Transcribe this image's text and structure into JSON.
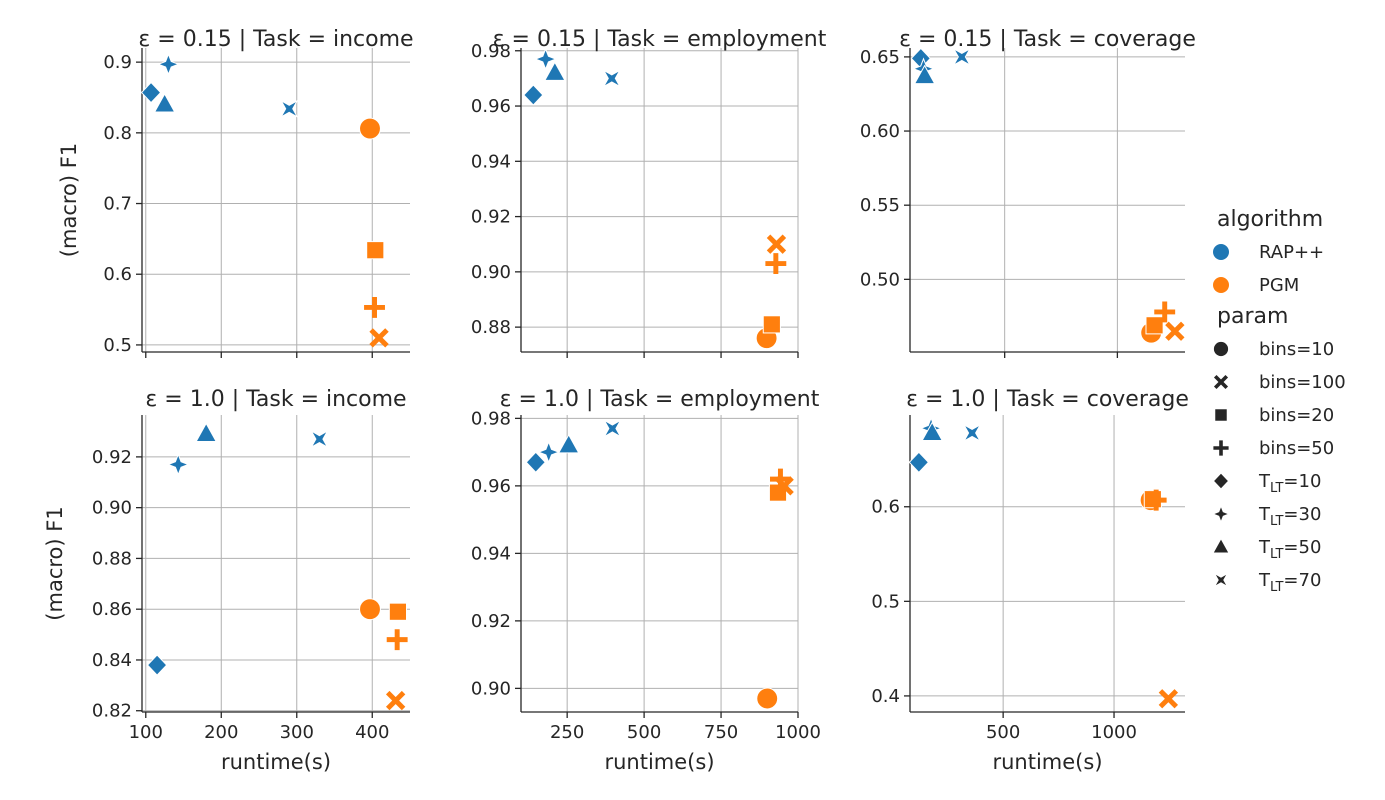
{
  "colors": {
    "RAP++": "#1f77b4",
    "PGM": "#ff7f0e",
    "grid": "#b0b0b0",
    "axis": "#262626",
    "legend_marker": "#262626"
  },
  "legend": {
    "algorithm_title": "algorithm",
    "algorithm_items": [
      "RAP++",
      "PGM"
    ],
    "param_title": "param",
    "param_items": [
      {
        "label": "bins=10",
        "marker": "circle"
      },
      {
        "label": "bins=100",
        "marker": "x"
      },
      {
        "label": "bins=20",
        "marker": "square"
      },
      {
        "label": "bins=50",
        "marker": "plus"
      },
      {
        "label": "T_LT=10",
        "marker": "diamond",
        "base": "T",
        "sub": "LT",
        "rest": "=10"
      },
      {
        "label": "T_LT=30",
        "marker": "star4",
        "base": "T",
        "sub": "LT",
        "rest": "=30"
      },
      {
        "label": "T_LT=50",
        "marker": "triangle",
        "base": "T",
        "sub": "LT",
        "rest": "=50"
      },
      {
        "label": "T_LT=70",
        "marker": "star4fat",
        "base": "T",
        "sub": "LT",
        "rest": "=70"
      }
    ]
  },
  "chart_data": [
    {
      "type": "scatter",
      "title": "ε = 0.15 | Task = income",
      "xlabel": "",
      "ylabel": "(macro) F1",
      "xlim": [
        95,
        450
      ],
      "ylim": [
        0.49,
        0.92
      ],
      "xticks": [
        100,
        200,
        300,
        400
      ],
      "xtick_labels": [],
      "yticks": [
        0.5,
        0.6,
        0.7,
        0.8,
        0.9
      ],
      "ytick_labels": [
        "0.5",
        "0.6",
        "0.7",
        "0.8",
        "0.9"
      ],
      "points": [
        {
          "algorithm": "RAP++",
          "param": "T_LT=10",
          "x": 107,
          "y": 0.857
        },
        {
          "algorithm": "RAP++",
          "param": "T_LT=30",
          "x": 130,
          "y": 0.897
        },
        {
          "algorithm": "RAP++",
          "param": "T_LT=50",
          "x": 125,
          "y": 0.84
        },
        {
          "algorithm": "RAP++",
          "param": "T_LT=70",
          "x": 290,
          "y": 0.834
        },
        {
          "algorithm": "PGM",
          "param": "bins=10",
          "x": 397,
          "y": 0.806
        },
        {
          "algorithm": "PGM",
          "param": "bins=20",
          "x": 404,
          "y": 0.634
        },
        {
          "algorithm": "PGM",
          "param": "bins=50",
          "x": 403,
          "y": 0.553
        },
        {
          "algorithm": "PGM",
          "param": "bins=100",
          "x": 409,
          "y": 0.51
        }
      ]
    },
    {
      "type": "scatter",
      "title": "ε = 0.15 | Task = employment",
      "xlabel": "",
      "ylabel": "",
      "xlim": [
        100,
        1000
      ],
      "ylim": [
        0.871,
        0.981
      ],
      "xticks": [
        250,
        500,
        750,
        1000
      ],
      "xtick_labels": [],
      "yticks": [
        0.88,
        0.9,
        0.92,
        0.94,
        0.96,
        0.98
      ],
      "ytick_labels": [
        "0.88",
        "0.90",
        "0.92",
        "0.94",
        "0.96",
        "0.98"
      ],
      "points": [
        {
          "algorithm": "RAP++",
          "param": "T_LT=10",
          "x": 140,
          "y": 0.964
        },
        {
          "algorithm": "RAP++",
          "param": "T_LT=30",
          "x": 180,
          "y": 0.977
        },
        {
          "algorithm": "RAP++",
          "param": "T_LT=50",
          "x": 210,
          "y": 0.972
        },
        {
          "algorithm": "RAP++",
          "param": "T_LT=70",
          "x": 395,
          "y": 0.97
        },
        {
          "algorithm": "PGM",
          "param": "bins=10",
          "x": 898,
          "y": 0.876
        },
        {
          "algorithm": "PGM",
          "param": "bins=20",
          "x": 915,
          "y": 0.881
        },
        {
          "algorithm": "PGM",
          "param": "bins=50",
          "x": 928,
          "y": 0.903
        },
        {
          "algorithm": "PGM",
          "param": "bins=100",
          "x": 930,
          "y": 0.91
        }
      ]
    },
    {
      "type": "scatter",
      "title": "ε = 0.15 | Task = coverage",
      "xlabel": "",
      "ylabel": "",
      "xlim": [
        80,
        1300
      ],
      "ylim": [
        0.451,
        0.656
      ],
      "xticks": [
        500,
        1000
      ],
      "xtick_labels": [],
      "yticks": [
        0.5,
        0.55,
        0.6,
        0.65
      ],
      "ytick_labels": [
        "0.50",
        "0.55",
        "0.60",
        "0.65"
      ],
      "points": [
        {
          "algorithm": "RAP++",
          "param": "T_LT=10",
          "x": 128,
          "y": 0.649
        },
        {
          "algorithm": "RAP++",
          "param": "T_LT=30",
          "x": 140,
          "y": 0.642
        },
        {
          "algorithm": "RAP++",
          "param": "T_LT=50",
          "x": 145,
          "y": 0.637
        },
        {
          "algorithm": "RAP++",
          "param": "T_LT=70",
          "x": 310,
          "y": 0.65
        },
        {
          "algorithm": "PGM",
          "param": "bins=10",
          "x": 1150,
          "y": 0.464
        },
        {
          "algorithm": "PGM",
          "param": "bins=20",
          "x": 1165,
          "y": 0.469
        },
        {
          "algorithm": "PGM",
          "param": "bins=50",
          "x": 1210,
          "y": 0.478
        },
        {
          "algorithm": "PGM",
          "param": "bins=100",
          "x": 1255,
          "y": 0.465
        }
      ]
    },
    {
      "type": "scatter",
      "title": "ε = 1.0 | Task = income",
      "xlabel": "runtime(s)",
      "ylabel": "(macro) F1",
      "xlim": [
        95,
        450
      ],
      "ylim": [
        0.8195,
        0.9365
      ],
      "xticks": [
        100,
        200,
        300,
        400
      ],
      "xtick_labels": [
        "100",
        "200",
        "300",
        "400"
      ],
      "yticks": [
        0.82,
        0.84,
        0.86,
        0.88,
        0.9,
        0.92
      ],
      "ytick_labels": [
        "0.82",
        "0.84",
        "0.86",
        "0.88",
        "0.90",
        "0.92"
      ],
      "points": [
        {
          "algorithm": "RAP++",
          "param": "T_LT=10",
          "x": 115,
          "y": 0.838
        },
        {
          "algorithm": "RAP++",
          "param": "T_LT=30",
          "x": 143,
          "y": 0.917
        },
        {
          "algorithm": "RAP++",
          "param": "T_LT=50",
          "x": 180,
          "y": 0.929
        },
        {
          "algorithm": "RAP++",
          "param": "T_LT=70",
          "x": 330,
          "y": 0.927
        },
        {
          "algorithm": "PGM",
          "param": "bins=10",
          "x": 397,
          "y": 0.86
        },
        {
          "algorithm": "PGM",
          "param": "bins=20",
          "x": 434,
          "y": 0.859
        },
        {
          "algorithm": "PGM",
          "param": "bins=50",
          "x": 433,
          "y": 0.848
        },
        {
          "algorithm": "PGM",
          "param": "bins=100",
          "x": 431,
          "y": 0.824
        }
      ]
    },
    {
      "type": "scatter",
      "title": "ε = 1.0 | Task = employment",
      "xlabel": "runtime(s)",
      "ylabel": "",
      "xlim": [
        100,
        1000
      ],
      "ylim": [
        0.893,
        0.981
      ],
      "xticks": [
        250,
        500,
        750,
        1000
      ],
      "xtick_labels": [
        "250",
        "500",
        "750",
        "1000"
      ],
      "yticks": [
        0.9,
        0.92,
        0.94,
        0.96,
        0.98
      ],
      "ytick_labels": [
        "0.90",
        "0.92",
        "0.94",
        "0.96",
        "0.98"
      ],
      "points": [
        {
          "algorithm": "RAP++",
          "param": "T_LT=10",
          "x": 148,
          "y": 0.967
        },
        {
          "algorithm": "RAP++",
          "param": "T_LT=30",
          "x": 190,
          "y": 0.97
        },
        {
          "algorithm": "RAP++",
          "param": "T_LT=50",
          "x": 255,
          "y": 0.972
        },
        {
          "algorithm": "RAP++",
          "param": "T_LT=70",
          "x": 397,
          "y": 0.977
        },
        {
          "algorithm": "PGM",
          "param": "bins=10",
          "x": 900,
          "y": 0.897
        },
        {
          "algorithm": "PGM",
          "param": "bins=20",
          "x": 935,
          "y": 0.958
        },
        {
          "algorithm": "PGM",
          "param": "bins=50",
          "x": 943,
          "y": 0.962
        },
        {
          "algorithm": "PGM",
          "param": "bins=100",
          "x": 955,
          "y": 0.96
        }
      ]
    },
    {
      "type": "scatter",
      "title": "ε = 1.0 | Task = coverage",
      "xlabel": "runtime(s)",
      "ylabel": "",
      "xlim": [
        80,
        1320
      ],
      "ylim": [
        0.383,
        0.697
      ],
      "xticks": [
        500,
        1000
      ],
      "xtick_labels": [
        "500",
        "1000"
      ],
      "yticks": [
        0.4,
        0.5,
        0.6
      ],
      "ytick_labels": [
        "0.4",
        "0.5",
        "0.6"
      ],
      "points": [
        {
          "algorithm": "RAP++",
          "param": "T_LT=10",
          "x": 120,
          "y": 0.647
        },
        {
          "algorithm": "RAP++",
          "param": "T_LT=30",
          "x": 175,
          "y": 0.683
        },
        {
          "algorithm": "RAP++",
          "param": "T_LT=50",
          "x": 180,
          "y": 0.678
        },
        {
          "algorithm": "RAP++",
          "param": "T_LT=70",
          "x": 360,
          "y": 0.678
        },
        {
          "algorithm": "PGM",
          "param": "bins=10",
          "x": 1165,
          "y": 0.607
        },
        {
          "algorithm": "PGM",
          "param": "bins=20",
          "x": 1175,
          "y": 0.608
        },
        {
          "algorithm": "PGM",
          "param": "bins=50",
          "x": 1190,
          "y": 0.607
        },
        {
          "algorithm": "PGM",
          "param": "bins=100",
          "x": 1245,
          "y": 0.397
        }
      ]
    }
  ]
}
